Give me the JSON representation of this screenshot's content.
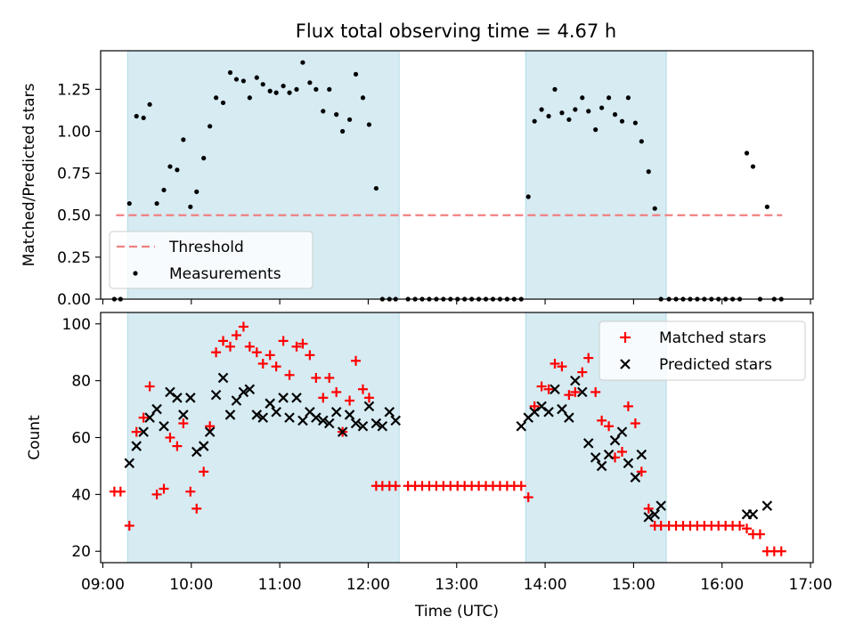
{
  "title": "Flux total observing time = 4.67 h",
  "chart_data": [
    {
      "type": "scatter",
      "name": "ratio-panel",
      "title": "Flux total observing time = 4.67 h",
      "xlabel": "",
      "ylabel": "Matched/Predicted stars",
      "xlim": [
        8.975,
        17.03
      ],
      "ylim": [
        0.0,
        1.48
      ],
      "yticks": [
        0.0,
        0.25,
        0.5,
        0.75,
        1.0,
        1.25
      ],
      "ytick_labels": [
        "0.00",
        "0.25",
        "0.50",
        "0.75",
        "1.00",
        "1.25"
      ],
      "grid": false,
      "legend_location": "lower-left",
      "shaded_intervals": [
        [
          9.28,
          12.35
        ],
        [
          13.78,
          15.37
        ]
      ],
      "threshold": {
        "name": "Threshold",
        "y": 0.5,
        "x": [
          9.15,
          16.68
        ],
        "color": "#f08080"
      },
      "series": [
        {
          "name": "Measurements",
          "color": "#000000",
          "x": [
            9.13,
            9.2,
            9.3,
            9.38,
            9.46,
            9.53,
            9.61,
            9.69,
            9.76,
            9.84,
            9.91,
            9.99,
            10.06,
            10.14,
            10.21,
            10.28,
            10.36,
            10.44,
            10.51,
            10.59,
            10.66,
            10.74,
            10.81,
            10.89,
            10.96,
            11.04,
            11.11,
            11.19,
            11.26,
            11.34,
            11.41,
            11.49,
            11.56,
            11.64,
            11.71,
            11.79,
            11.86,
            11.94,
            12.01,
            12.09,
            12.16,
            12.24,
            12.31,
            12.45,
            12.53,
            12.61,
            12.69,
            12.77,
            12.85,
            12.93,
            13.01,
            13.09,
            13.17,
            13.25,
            13.33,
            13.41,
            13.49,
            13.57,
            13.65,
            13.73,
            13.81,
            13.88,
            13.96,
            14.04,
            14.11,
            14.19,
            14.27,
            14.34,
            14.42,
            14.49,
            14.57,
            14.64,
            14.72,
            14.79,
            14.87,
            14.94,
            15.02,
            15.09,
            15.17,
            15.24,
            15.31,
            15.4,
            15.48,
            15.56,
            15.64,
            15.72,
            15.8,
            15.88,
            15.96,
            16.04,
            16.12,
            16.2,
            16.28,
            16.35,
            16.43,
            16.51,
            16.59,
            16.67
          ],
          "y": [
            0.0,
            0.0,
            0.57,
            1.09,
            1.08,
            1.16,
            0.57,
            0.65,
            0.79,
            0.77,
            0.95,
            0.55,
            0.64,
            0.84,
            1.03,
            1.2,
            1.17,
            1.35,
            1.31,
            1.3,
            1.2,
            1.32,
            1.28,
            1.24,
            1.23,
            1.27,
            1.23,
            1.25,
            1.41,
            1.29,
            1.25,
            1.12,
            1.25,
            1.1,
            1.0,
            1.07,
            1.34,
            1.2,
            1.04,
            0.66,
            0.0,
            0.0,
            0.0,
            0.0,
            0.0,
            0.0,
            0.0,
            0.0,
            0.0,
            0.0,
            0.0,
            0.0,
            0.0,
            0.0,
            0.0,
            0.0,
            0.0,
            0.0,
            0.0,
            0.0,
            0.61,
            1.06,
            1.13,
            1.09,
            1.25,
            1.11,
            1.07,
            1.13,
            1.2,
            1.12,
            1.01,
            1.14,
            1.2,
            1.1,
            1.06,
            1.2,
            1.05,
            0.94,
            0.76,
            0.54,
            0.0,
            0.0,
            0.0,
            0.0,
            0.0,
            0.0,
            0.0,
            0.0,
            0.0,
            0.0,
            0.0,
            0.0,
            0.87,
            0.79,
            0.0,
            0.55,
            0.0,
            0.0
          ]
        }
      ]
    },
    {
      "type": "scatter",
      "name": "count-panel",
      "xlabel": "Time (UTC)",
      "ylabel": "Count",
      "xlim": [
        8.975,
        17.03
      ],
      "ylim": [
        16,
        104
      ],
      "xticks": [
        9,
        10,
        11,
        12,
        13,
        14,
        15,
        16,
        17
      ],
      "xtick_labels": [
        "09:00",
        "10:00",
        "11:00",
        "12:00",
        "13:00",
        "14:00",
        "15:00",
        "16:00",
        "17:00"
      ],
      "yticks": [
        20,
        40,
        60,
        80,
        100
      ],
      "ytick_labels": [
        "20",
        "40",
        "60",
        "80",
        "100"
      ],
      "grid": false,
      "legend_location": "top-right",
      "shaded_intervals": [
        [
          9.28,
          12.35
        ],
        [
          13.78,
          15.37
        ]
      ],
      "series": [
        {
          "name": "Matched stars",
          "marker": "plus",
          "color": "#ff0000",
          "x": [
            9.13,
            9.2,
            9.3,
            9.38,
            9.46,
            9.53,
            9.61,
            9.69,
            9.76,
            9.84,
            9.91,
            9.99,
            10.06,
            10.14,
            10.21,
            10.28,
            10.36,
            10.44,
            10.51,
            10.59,
            10.66,
            10.74,
            10.81,
            10.89,
            10.96,
            11.04,
            11.11,
            11.19,
            11.26,
            11.34,
            11.41,
            11.49,
            11.56,
            11.64,
            11.71,
            11.79,
            11.86,
            11.94,
            12.01,
            12.09,
            12.16,
            12.24,
            12.31,
            12.45,
            12.53,
            12.61,
            12.69,
            12.77,
            12.85,
            12.93,
            13.01,
            13.09,
            13.17,
            13.25,
            13.33,
            13.41,
            13.49,
            13.57,
            13.65,
            13.73,
            13.81,
            13.88,
            13.96,
            14.04,
            14.11,
            14.19,
            14.27,
            14.34,
            14.42,
            14.49,
            14.57,
            14.64,
            14.72,
            14.79,
            14.87,
            14.94,
            15.02,
            15.09,
            15.17,
            15.24,
            15.31,
            15.4,
            15.48,
            15.56,
            15.64,
            15.72,
            15.8,
            15.88,
            15.96,
            16.04,
            16.12,
            16.2,
            16.28,
            16.35,
            16.43,
            16.51,
            16.59,
            16.67
          ],
          "y": [
            41,
            41,
            29,
            62,
            67,
            78,
            40,
            42,
            60,
            57,
            65,
            41,
            35,
            48,
            64,
            90,
            94,
            92,
            96,
            99,
            92,
            90,
            86,
            89,
            85,
            94,
            82,
            92,
            93,
            89,
            81,
            74,
            81,
            76,
            62,
            73,
            87,
            77,
            74,
            43,
            43,
            43,
            43,
            43,
            43,
            43,
            43,
            43,
            43,
            43,
            43,
            43,
            43,
            43,
            43,
            43,
            43,
            43,
            43,
            43,
            39,
            71,
            78,
            77,
            86,
            85,
            75,
            76,
            83,
            88,
            76,
            66,
            64,
            53,
            55,
            71,
            65,
            48,
            35,
            29,
            29,
            29,
            29,
            29,
            29,
            29,
            29,
            29,
            29,
            29,
            29,
            29,
            28,
            26,
            26,
            20,
            20,
            20
          ]
        },
        {
          "name": "Predicted stars",
          "marker": "x",
          "color": "#000000",
          "x": [
            9.3,
            9.38,
            9.46,
            9.53,
            9.61,
            9.69,
            9.76,
            9.84,
            9.91,
            9.99,
            10.06,
            10.14,
            10.21,
            10.28,
            10.36,
            10.44,
            10.51,
            10.59,
            10.66,
            10.74,
            10.81,
            10.89,
            10.96,
            11.04,
            11.11,
            11.19,
            11.26,
            11.34,
            11.41,
            11.49,
            11.56,
            11.64,
            11.71,
            11.79,
            11.86,
            11.94,
            12.01,
            12.09,
            12.16,
            12.24,
            12.31,
            13.73,
            13.81,
            13.88,
            13.96,
            14.04,
            14.11,
            14.19,
            14.27,
            14.34,
            14.42,
            14.49,
            14.57,
            14.64,
            14.72,
            14.79,
            14.87,
            14.94,
            15.02,
            15.09,
            15.17,
            15.24,
            15.31,
            16.28,
            16.35,
            16.51
          ],
          "y": [
            51,
            57,
            62,
            67,
            70,
            64,
            76,
            74,
            68,
            74,
            55,
            57,
            62,
            75,
            81,
            68,
            73,
            76,
            77,
            68,
            67,
            72,
            69,
            74,
            67,
            74,
            66,
            69,
            67,
            66,
            65,
            69,
            62,
            68,
            65,
            64,
            71,
            65,
            64,
            69,
            66,
            64,
            67,
            69,
            71,
            69,
            77,
            70,
            67,
            80,
            76,
            58,
            53,
            50,
            54,
            59,
            62,
            51,
            46,
            54,
            32,
            33,
            36,
            33,
            33,
            36
          ]
        }
      ]
    }
  ]
}
